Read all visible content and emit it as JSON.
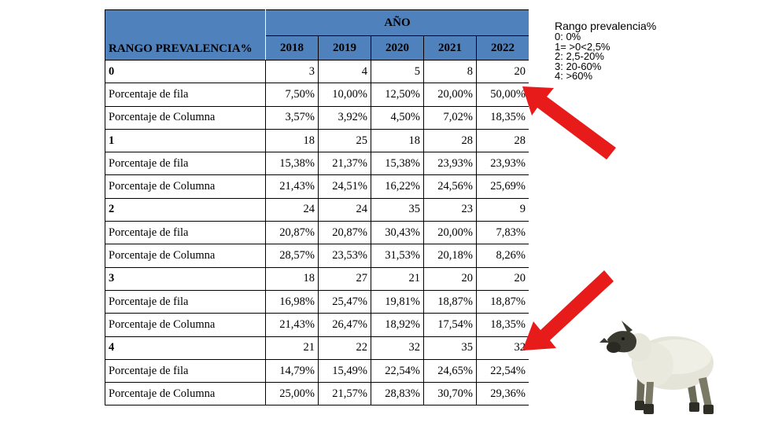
{
  "table": {
    "header": {
      "group_label": "AÑO",
      "rango_label": "RANGO PREVALENCIA%",
      "years": [
        "2018",
        "2019",
        "2020",
        "2021",
        "2022"
      ]
    },
    "rows": [
      {
        "kind": "group",
        "label": "0",
        "values": [
          "3",
          "4",
          "5",
          "8",
          "20"
        ]
      },
      {
        "kind": "pct",
        "label": "Porcentaje de fila",
        "values": [
          "7,50%",
          "10,00%",
          "12,50%",
          "20,00%",
          "50,00%"
        ]
      },
      {
        "kind": "pct",
        "label": "Porcentaje de Columna",
        "values": [
          "3,57%",
          "3,92%",
          "4,50%",
          "7,02%",
          "18,35%"
        ]
      },
      {
        "kind": "group",
        "label": "1",
        "values": [
          "18",
          "25",
          "18",
          "28",
          "28"
        ]
      },
      {
        "kind": "pct",
        "label": "Porcentaje de fila",
        "values": [
          "15,38%",
          "21,37%",
          "15,38%",
          "23,93%",
          "23,93%"
        ]
      },
      {
        "kind": "pct",
        "label": "Porcentaje de Columna",
        "values": [
          "21,43%",
          "24,51%",
          "16,22%",
          "24,56%",
          "25,69%"
        ]
      },
      {
        "kind": "group",
        "label": "2",
        "values": [
          "24",
          "24",
          "35",
          "23",
          "9"
        ]
      },
      {
        "kind": "pct",
        "label": "Porcentaje de fila",
        "values": [
          "20,87%",
          "20,87%",
          "30,43%",
          "20,00%",
          "7,83%"
        ]
      },
      {
        "kind": "pct",
        "label": "Porcentaje de Columna",
        "values": [
          "28,57%",
          "23,53%",
          "31,53%",
          "20,18%",
          "8,26%"
        ]
      },
      {
        "kind": "group",
        "label": "3",
        "values": [
          "18",
          "27",
          "21",
          "20",
          "20"
        ]
      },
      {
        "kind": "pct",
        "label": "Porcentaje de fila",
        "values": [
          "16,98%",
          "25,47%",
          "19,81%",
          "18,87%",
          "18,87%"
        ]
      },
      {
        "kind": "pct",
        "label": "Porcentaje de Columna",
        "values": [
          "21,43%",
          "26,47%",
          "18,92%",
          "17,54%",
          "18,35%"
        ]
      },
      {
        "kind": "group",
        "label": "4",
        "values": [
          "21",
          "22",
          "32",
          "35",
          "32"
        ]
      },
      {
        "kind": "pct",
        "label": "Porcentaje de fila",
        "values": [
          "14,79%",
          "15,49%",
          "22,54%",
          "24,65%",
          "22,54%"
        ]
      },
      {
        "kind": "pct",
        "label": "Porcentaje de Columna",
        "values": [
          "25,00%",
          "21,57%",
          "28,83%",
          "30,70%",
          "29,36%"
        ]
      }
    ]
  },
  "legend": {
    "title": "Rango prevalencia%",
    "items": [
      "0: 0%",
      "1= >0<2,5%",
      "2: 2,5-20%",
      "3: 20-60%",
      "4: >60%"
    ]
  },
  "colors": {
    "header_bg": "#4f81bd",
    "arrow": "#e81b1b"
  },
  "icons": [
    "red-arrow-icon",
    "sheep-icon"
  ]
}
